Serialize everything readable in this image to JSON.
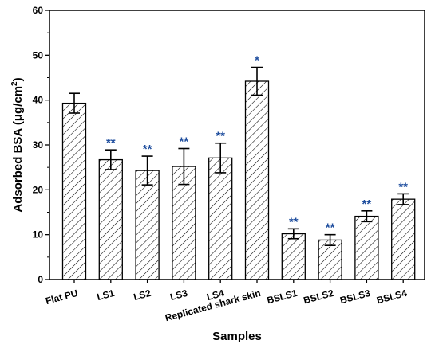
{
  "chart_data": {
    "type": "bar",
    "xlabel": "Samples",
    "ylabel": "Adsorbed BSA (μg/cm²)",
    "ylabel_main": "Adsorbed BSA (μg/cm",
    "ylabel_sup": "2",
    "ylabel_tail": ")",
    "ylim": [
      0,
      60
    ],
    "yticks": [
      "0",
      "10",
      "20",
      "30",
      "40",
      "50",
      "60"
    ],
    "grid": false,
    "bar_fill": "hatched",
    "categories": [
      "Flat PU",
      "LS1",
      "LS2",
      "LS3",
      "LS4",
      "Replicated shark skin",
      "BSLS1",
      "BSLS2",
      "BSLS3",
      "BSLS4"
    ],
    "values": [
      39.3,
      26.7,
      24.3,
      25.2,
      27.1,
      44.2,
      10.2,
      8.8,
      14.1,
      17.9
    ],
    "errors": [
      2.2,
      2.2,
      3.2,
      4.0,
      3.3,
      3.1,
      1.1,
      1.2,
      1.2,
      1.2
    ],
    "significance": [
      "",
      "**",
      "**",
      "**",
      "**",
      "*",
      "**",
      "**",
      "**",
      "**"
    ],
    "significance_color": "#1f4e9e"
  }
}
